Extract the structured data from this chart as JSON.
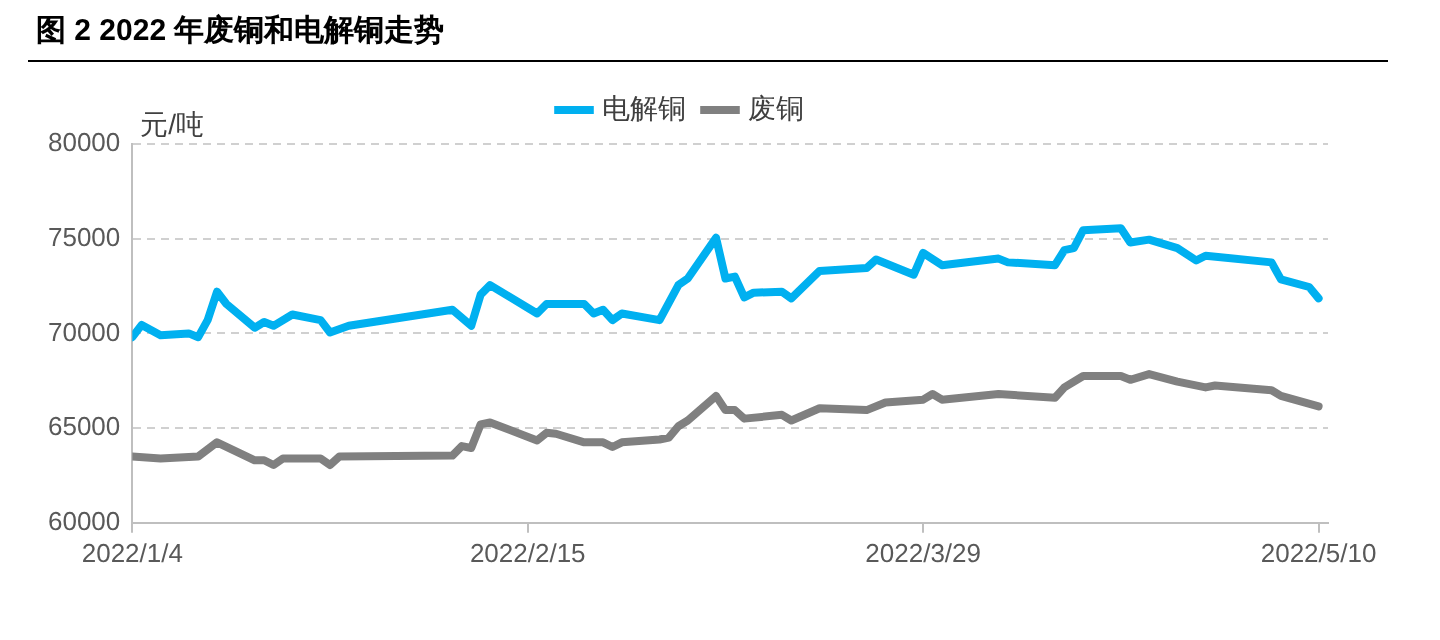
{
  "chart_data": {
    "type": "line",
    "title": "图 2 2022 年废铜和电解铜走势",
    "ylabel": "元/吨",
    "series": [
      {
        "name": "电解铜",
        "color": "#00b0f0",
        "x": [
          "2022-01-04",
          "2022-01-05",
          "2022-01-07",
          "2022-01-10",
          "2022-01-11",
          "2022-01-12",
          "2022-01-13",
          "2022-01-14",
          "2022-01-17",
          "2022-01-18",
          "2022-01-19",
          "2022-01-21",
          "2022-01-24",
          "2022-01-25",
          "2022-01-27",
          "2022-02-07",
          "2022-02-09",
          "2022-02-10",
          "2022-02-11",
          "2022-02-16",
          "2022-02-17",
          "2022-02-21",
          "2022-02-22",
          "2022-02-23",
          "2022-02-24",
          "2022-02-25",
          "2022-03-01",
          "2022-03-03",
          "2022-03-04",
          "2022-03-07",
          "2022-03-08",
          "2022-03-09",
          "2022-03-10",
          "2022-03-11",
          "2022-03-14",
          "2022-03-15",
          "2022-03-18",
          "2022-03-23",
          "2022-03-24",
          "2022-03-28",
          "2022-03-29",
          "2022-03-31",
          "2022-04-06",
          "2022-04-07",
          "2022-04-12",
          "2022-04-13",
          "2022-04-14",
          "2022-04-15",
          "2022-04-19",
          "2022-04-20",
          "2022-04-22",
          "2022-04-25",
          "2022-04-27",
          "2022-04-28",
          "2022-05-05",
          "2022-05-06",
          "2022-05-09",
          "2022-05-10"
        ],
        "values": [
          69800,
          70450,
          69900,
          70000,
          69800,
          70700,
          72200,
          71550,
          70300,
          70600,
          70400,
          71000,
          70700,
          70050,
          70400,
          71250,
          70400,
          72050,
          72550,
          71050,
          71550,
          71550,
          71050,
          71250,
          70700,
          71050,
          70700,
          72550,
          72900,
          75050,
          72900,
          73000,
          71900,
          72150,
          72200,
          71850,
          73300,
          73450,
          73900,
          73100,
          74250,
          73600,
          73950,
          73750,
          73600,
          74400,
          74500,
          75450,
          75550,
          74800,
          74950,
          74500,
          73850,
          74100,
          73750,
          72850,
          72450,
          71850
        ]
      },
      {
        "name": "废铜",
        "color": "#808080",
        "x": [
          "2022-01-04",
          "2022-01-07",
          "2022-01-11",
          "2022-01-13",
          "2022-01-17",
          "2022-01-18",
          "2022-01-19",
          "2022-01-20",
          "2022-01-24",
          "2022-01-25",
          "2022-01-26",
          "2022-02-07",
          "2022-02-08",
          "2022-02-09",
          "2022-02-10",
          "2022-02-11",
          "2022-02-16",
          "2022-02-17",
          "2022-02-18",
          "2022-02-21",
          "2022-02-23",
          "2022-02-24",
          "2022-02-25",
          "2022-03-01",
          "2022-03-02",
          "2022-03-03",
          "2022-03-04",
          "2022-03-07",
          "2022-03-08",
          "2022-03-09",
          "2022-03-10",
          "2022-03-14",
          "2022-03-15",
          "2022-03-18",
          "2022-03-23",
          "2022-03-25",
          "2022-03-29",
          "2022-03-30",
          "2022-03-31",
          "2022-04-06",
          "2022-04-12",
          "2022-04-13",
          "2022-04-15",
          "2022-04-19",
          "2022-04-20",
          "2022-04-22",
          "2022-04-25",
          "2022-04-28",
          "2022-04-29",
          "2022-05-05",
          "2022-05-06",
          "2022-05-10"
        ],
        "values": [
          63500,
          63400,
          63500,
          64250,
          63300,
          63300,
          63050,
          63400,
          63400,
          63050,
          63500,
          63550,
          64050,
          63950,
          65200,
          65300,
          64350,
          64750,
          64700,
          64250,
          64250,
          64000,
          64250,
          64400,
          64500,
          65100,
          65400,
          66700,
          65950,
          65950,
          65500,
          65700,
          65400,
          66050,
          65950,
          66350,
          66500,
          66800,
          66500,
          66800,
          66600,
          67150,
          67750,
          67750,
          67550,
          67850,
          67450,
          67150,
          67250,
          67000,
          66700,
          66150
        ]
      }
    ],
    "xlim": [
      "2022-01-04",
      "2022-05-11"
    ],
    "xticks": [
      {
        "value": "2022-01-04",
        "label": "2022/1/4"
      },
      {
        "value": "2022-02-15",
        "label": "2022/2/15"
      },
      {
        "value": "2022-03-29",
        "label": "2022/3/29"
      },
      {
        "value": "2022-05-10",
        "label": "2022/5/10"
      }
    ],
    "ylim": [
      60000,
      80000
    ],
    "yticks": [
      60000,
      65000,
      70000,
      75000,
      80000
    ],
    "grid": "y",
    "legend": "top",
    "marker": "none",
    "line_style": "solid"
  }
}
